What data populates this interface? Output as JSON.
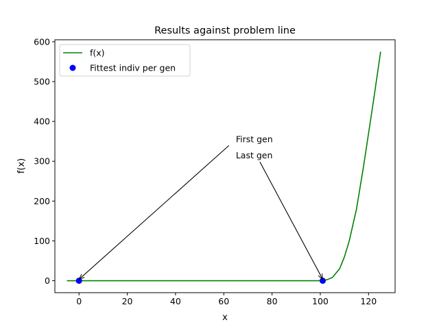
{
  "chart_data": {
    "type": "line",
    "title": "Results against problem line",
    "xlabel": "x",
    "ylabel": "f(x)",
    "xlim": [
      -10,
      131
    ],
    "ylim": [
      -30,
      605
    ],
    "x_ticks": [
      0,
      20,
      40,
      60,
      80,
      100,
      120
    ],
    "y_ticks": [
      0,
      100,
      200,
      300,
      400,
      500,
      600
    ],
    "grid": false,
    "legend_position": "top-left",
    "series": [
      {
        "name": "f(x)",
        "kind": "line",
        "color": "#008000",
        "x": [
          -5,
          0,
          20,
          40,
          60,
          80,
          100,
          101,
          103,
          105,
          108,
          110,
          112,
          115,
          118,
          120,
          122,
          125
        ],
        "y": [
          0,
          0,
          0,
          0,
          0,
          0,
          0,
          0,
          3,
          8,
          30,
          60,
          100,
          180,
          290,
          370,
          450,
          575
        ]
      },
      {
        "name": "Fittest indiv per gen",
        "kind": "scatter",
        "color": "#0000ff",
        "x": [
          0,
          101
        ],
        "y": [
          0,
          0
        ]
      }
    ],
    "annotations": [
      {
        "text": "First gen",
        "text_x": 65,
        "text_y": 355,
        "point_x": 0,
        "point_y": 0
      },
      {
        "text": "Last gen",
        "text_x": 65,
        "text_y": 314,
        "point_x": 101,
        "point_y": 0
      }
    ]
  }
}
